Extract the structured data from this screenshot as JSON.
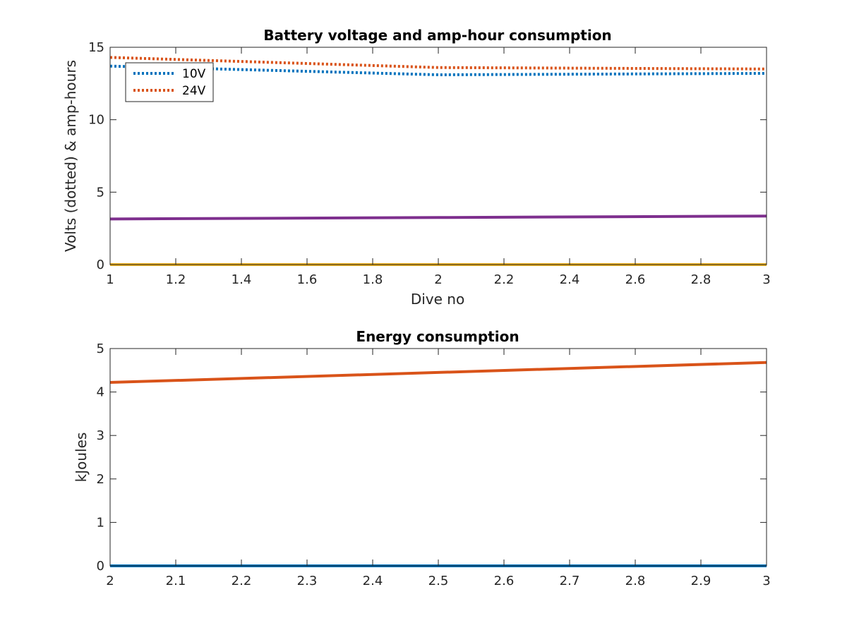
{
  "chart_data": [
    {
      "type": "line",
      "title": "Battery voltage and amp-hour consumption",
      "xlabel": "Dive no",
      "ylabel": "Volts (dotted) & amp-hours",
      "xlim": [
        1,
        3
      ],
      "ylim": [
        0,
        15
      ],
      "xticks": [
        "1",
        "1.2",
        "1.4",
        "1.6",
        "1.8",
        "2",
        "2.2",
        "2.4",
        "2.6",
        "2.8",
        "3"
      ],
      "yticks": [
        "0",
        "5",
        "10",
        "15"
      ],
      "grid": false,
      "legend": {
        "placement": "top-left",
        "entries": [
          "10V",
          "24V"
        ]
      },
      "series": [
        {
          "name": "10V",
          "style": "dotted",
          "color": "#0072BD",
          "x": [
            1,
            2,
            3
          ],
          "y": [
            13.7,
            13.1,
            13.2
          ]
        },
        {
          "name": "24V",
          "style": "dotted",
          "color": "#D95319",
          "x": [
            1,
            2,
            3
          ],
          "y": [
            14.3,
            13.6,
            13.5
          ]
        },
        {
          "style": "solid",
          "color": "#7E2F8E",
          "x": [
            1,
            2,
            3
          ],
          "y": [
            3.15,
            3.25,
            3.35
          ]
        },
        {
          "style": "solid",
          "color": "#EDB120",
          "x": [
            1,
            2,
            3
          ],
          "y": [
            0,
            0,
            0
          ]
        }
      ]
    },
    {
      "type": "line",
      "title": "Energy consumption",
      "xlabel": "",
      "ylabel": "kJoules",
      "xlim": [
        2,
        3
      ],
      "ylim": [
        0,
        5
      ],
      "xticks": [
        "2",
        "2.1",
        "2.2",
        "2.3",
        "2.4",
        "2.5",
        "2.6",
        "2.7",
        "2.8",
        "2.9",
        "3"
      ],
      "yticks": [
        "0",
        "1",
        "2",
        "3",
        "4",
        "5"
      ],
      "grid": false,
      "series": [
        {
          "style": "solid",
          "color": "#D95319",
          "x": [
            2,
            3
          ],
          "y": [
            4.22,
            4.68
          ]
        },
        {
          "style": "solid",
          "color": "#0072BD",
          "x": [
            2,
            3
          ],
          "y": [
            0,
            0
          ]
        }
      ]
    }
  ]
}
